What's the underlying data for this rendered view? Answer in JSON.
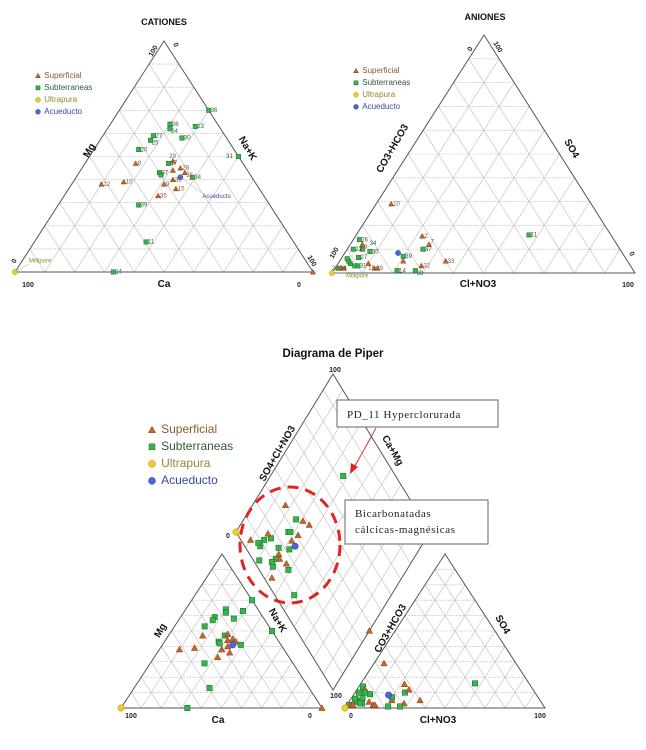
{
  "chart_data": {
    "type": "scatter",
    "subtype": "piper-ternary",
    "titles": {
      "cations": "CATIONES",
      "anions": "ANIONES",
      "piper": "Diagrama de Piper"
    },
    "axes": {
      "cations": {
        "left": "Mg",
        "right": "Na+K",
        "bottom": "Ca"
      },
      "anions": {
        "left": "CO3+HCO3",
        "right": "SO4",
        "bottom": "Cl+NO3"
      },
      "diamond": {
        "left": "SO4+Cl+NO3",
        "right": "Ca+Mg"
      },
      "ticks": {
        "zero": "0",
        "hundred": "100"
      },
      "range": [
        0,
        100
      ],
      "grid_step": 10
    },
    "legend": {
      "placement": "top-left",
      "items": [
        {
          "type": "S",
          "label": "Superficial",
          "color": "#c8662a",
          "text_color": "#8a5a2e"
        },
        {
          "type": "G",
          "label": "Subterraneas",
          "color": "#35b44a",
          "text_color": "#2e5a3a"
        },
        {
          "type": "U",
          "label": "Ultrapura",
          "color": "#f0d020",
          "text_color": "#8f8a2e"
        },
        {
          "type": "A",
          "label": "Acueducto",
          "color": "#4a66dd",
          "text_color": "#3848a0"
        }
      ]
    },
    "annotations": {
      "pd11": "PD_11 Hyperclorurada",
      "bicarb_line1": "Bicarbonatadas",
      "bicarb_line2": "cálcicas-magnésicas"
    },
    "composition_note": "cat = [Ca, Mg, Na+K] fractions; an = [CO3+HCO3, SO4, Cl+NO3] fractions",
    "samples": [
      {
        "id": "36",
        "type": "G",
        "cat": [
          0,
          0.7,
          0.3
        ],
        "an": [
          0.92,
          0.04,
          0.04
        ],
        "lc": true,
        "la": false
      },
      {
        "id": "26",
        "type": "G",
        "cat": [
          0.16,
          0.64,
          0.2
        ],
        "an": [
          0.84,
          0.14,
          0.02
        ],
        "lc": true,
        "la": true
      },
      {
        "id": "24",
        "type": "G",
        "cat": [
          0.17,
          0.62,
          0.21
        ],
        "an": [
          0.97,
          0.02,
          0.01
        ],
        "lc": true,
        "la": true
      },
      {
        "id": "23",
        "type": "G",
        "cat": [
          0.08,
          0.63,
          0.29
        ],
        "an": [
          0.88,
          0.1,
          0.02
        ],
        "lc": true,
        "la": true
      },
      {
        "id": "27",
        "type": "G",
        "cat": [
          0.24,
          0.59,
          0.17
        ],
        "an": [
          0.88,
          0.065,
          0.055
        ],
        "lc": true,
        "la": true
      },
      {
        "id": "25",
        "type": "G",
        "cat": [
          0.26,
          0.57,
          0.17
        ],
        "an": [
          0.92,
          0.05,
          0.03
        ],
        "lc": true,
        "la": false
      },
      {
        "id": "30",
        "type": "G",
        "cat": [
          0.15,
          0.58,
          0.27
        ],
        "an": [
          0.83,
          0.09,
          0.08
        ],
        "lc": true,
        "la": true
      },
      {
        "id": "20",
        "type": "G",
        "cat": [
          0.32,
          0.53,
          0.15
        ],
        "an": [
          0.92,
          0.06,
          0.02
        ],
        "lc": true,
        "la": false
      },
      {
        "id": "31",
        "type": "G",
        "cat": [
          0,
          0.5,
          0.5
        ],
        "an": [
          0.9,
          0.03,
          0.07
        ],
        "lc": true,
        "la": true
      },
      {
        "id": "17",
        "type": "G",
        "cat": [
          0.25,
          0.47,
          0.28
        ],
        "an": [
          0.91,
          0.03,
          0.06
        ],
        "lc": true,
        "la": false
      },
      {
        "id": "29",
        "type": "S",
        "cat": [
          0.23,
          0.48,
          0.29
        ],
        "an": [
          0.85,
          0.02,
          0.13
        ],
        "lc": true,
        "la": true
      },
      {
        "id": "8",
        "type": "S",
        "cat": [
          0.36,
          0.47,
          0.17
        ],
        "an": [
          0.84,
          0.12,
          0.04
        ],
        "lc": true,
        "la": true
      },
      {
        "id": "28",
        "type": "S",
        "cat": [
          0.22,
          0.45,
          0.33
        ],
        "an": [
          0.96,
          0.02,
          0.02
        ],
        "lc": true,
        "la": true
      },
      {
        "id": "37",
        "type": "G",
        "cat": [
          0.3,
          0.43,
          0.27
        ],
        "an": [
          0.65,
          0.1,
          0.25
        ],
        "lc": true,
        "la": true
      },
      {
        "id": "33",
        "type": "S",
        "cat": [
          0.215,
          0.43,
          0.355
        ],
        "an": [
          0.6,
          0.05,
          0.35
        ],
        "lc": true,
        "la": true
      },
      {
        "id": "34",
        "type": "G",
        "cat": [
          0.2,
          0.41,
          0.39
        ],
        "an": [
          0.85,
          0.1,
          0.05
        ],
        "lc": true,
        "la": true
      },
      {
        "id": "32",
        "type": "S",
        "cat": [
          0.27,
          0.4,
          0.33
        ],
        "an": [
          0.69,
          0.03,
          0.28
        ],
        "lc": true,
        "la": true
      },
      {
        "id": "12",
        "type": "S",
        "cat": [
          0.52,
          0.38,
          0.1
        ],
        "an": [
          0.95,
          0.02,
          0.03
        ],
        "lc": true,
        "la": false
      },
      {
        "id": "10",
        "type": "S",
        "cat": [
          0.44,
          0.39,
          0.17
        ],
        "an": [
          0.66,
          0.29,
          0.05
        ],
        "lc": true,
        "la": true
      },
      {
        "id": "9",
        "type": "S",
        "cat": [
          0.31,
          0.38,
          0.31
        ],
        "an": [
          0.86,
          0.04,
          0.1
        ],
        "lc": true,
        "la": false
      },
      {
        "id": "15",
        "type": "S",
        "cat": [
          0.28,
          0.36,
          0.36
        ],
        "an": [
          0.84,
          0.02,
          0.14
        ],
        "lc": true,
        "la": true
      },
      {
        "id": "35",
        "type": "S",
        "cat": [
          0.355,
          0.33,
          0.315
        ],
        "an": [
          0.74,
          0.05,
          0.21
        ],
        "lc": true,
        "la": false
      },
      {
        "id": "39",
        "type": "G",
        "cat": [
          0.44,
          0.29,
          0.27
        ],
        "an": [
          0.73,
          0.07,
          0.2
        ],
        "lc": true,
        "la": true
      },
      {
        "id": "11",
        "type": "G",
        "cat": [
          0.495,
          0.13,
          0.375
        ],
        "an": [
          0.27,
          0.16,
          0.57
        ],
        "lc": true,
        "la": true
      },
      {
        "id": "14",
        "type": "G",
        "cat": [
          0.67,
          0,
          0.33
        ],
        "an": [
          0.78,
          0.01,
          0.21
        ],
        "lc": true,
        "la": true
      },
      {
        "id": "2",
        "type": "S",
        "cat": [
          0,
          0,
          1
        ],
        "an": [
          0.625,
          0.155,
          0.22
        ],
        "lc": false,
        "la": true
      },
      {
        "id": "7",
        "type": "S",
        "cat": [
          0.25,
          0.44,
          0.31
        ],
        "an": [
          0.62,
          0.12,
          0.26
        ],
        "lc": false,
        "la": true
      },
      {
        "id": "38",
        "type": "G",
        "cat": [
          0.3,
          0.42,
          0.28
        ],
        "an": [
          0.72,
          0.01,
          0.27
        ],
        "lc": false,
        "la": true
      },
      {
        "id": "Millipore",
        "type": "U",
        "cat": [
          1,
          0,
          0
        ],
        "an": [
          1,
          0,
          0
        ],
        "lc": true,
        "la": true
      },
      {
        "id": "Acueducto",
        "type": "A",
        "cat": [
          0.24,
          0.41,
          0.35
        ],
        "an": [
          0.74,
          0.084,
          0.176
        ],
        "lc": true,
        "la": false
      }
    ]
  }
}
